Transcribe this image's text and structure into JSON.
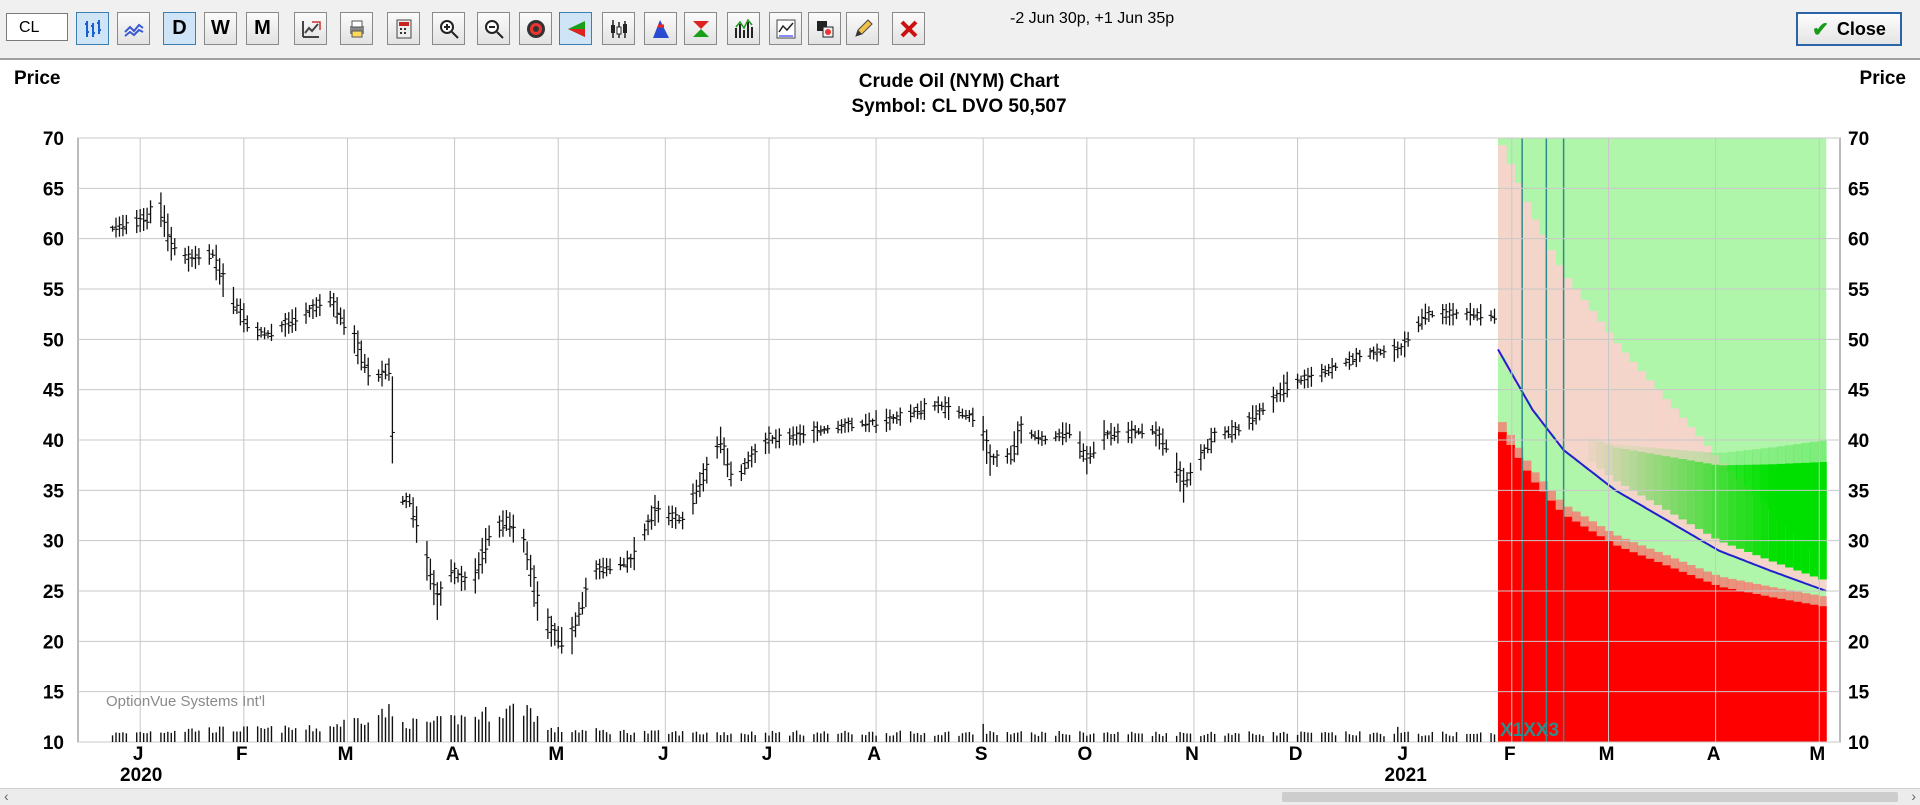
{
  "toolbar": {
    "symbol": "CL",
    "buttons": [
      {
        "name": "bar-chart-button",
        "label": "",
        "icon": "bar-chart-icon",
        "on": true
      },
      {
        "name": "line-chart-button",
        "label": "",
        "icon": "line-chart-icon",
        "on": false
      },
      {
        "name": "daily-button",
        "label": "D",
        "icon": "",
        "on": true
      },
      {
        "name": "weekly-button",
        "label": "W",
        "icon": "",
        "on": false
      },
      {
        "name": "monthly-button",
        "label": "M",
        "icon": "",
        "on": false
      },
      {
        "name": "chart-settings-button",
        "label": "",
        "icon": "chart-settings-icon",
        "on": false
      },
      {
        "name": "print-button",
        "label": "",
        "icon": "print-icon",
        "on": false
      },
      {
        "name": "calculator-button",
        "label": "",
        "icon": "calculator-icon",
        "on": false
      },
      {
        "name": "zoom-in-button",
        "label": "",
        "icon": "zoom-in-icon",
        "on": false
      },
      {
        "name": "zoom-out-button",
        "label": "",
        "icon": "zoom-out-icon",
        "on": false
      },
      {
        "name": "target-button",
        "label": "",
        "icon": "target-icon",
        "on": false
      },
      {
        "name": "probability-cone-button",
        "label": "",
        "icon": "probability-cone-icon",
        "on": true
      },
      {
        "name": "candles-button",
        "label": "",
        "icon": "candles-icon",
        "on": false
      },
      {
        "name": "expected-range-button",
        "label": "",
        "icon": "expected-range-icon",
        "on": false
      },
      {
        "name": "hourglass-button",
        "label": "",
        "icon": "hourglass-icon",
        "on": false
      },
      {
        "name": "volume-study-button",
        "label": "",
        "icon": "volume-study-icon",
        "on": false
      },
      {
        "name": "indicator-button",
        "label": "",
        "icon": "indicator-icon",
        "on": false
      },
      {
        "name": "palette-button",
        "label": "",
        "icon": "palette-icon",
        "on": false
      },
      {
        "name": "draw-line-button",
        "label": "",
        "icon": "pencil-icon",
        "on": false
      },
      {
        "name": "delete-button",
        "label": "",
        "icon": "delete-icon",
        "on": false
      }
    ],
    "status": "-2 Jun 30p, +1 Jun 35p",
    "close_label": "Close"
  },
  "chart_data": {
    "type": "bar",
    "title": "Crude Oil (NYM) Chart",
    "subtitle": "Symbol: CL  DVO 50,507",
    "ylabel_left": "Price",
    "ylabel_right": "Price",
    "ylim": [
      10,
      70
    ],
    "yticks": [
      10,
      15,
      20,
      25,
      30,
      35,
      40,
      45,
      50,
      55,
      60,
      65,
      70
    ],
    "watermark": "OptionVue Systems Int'l",
    "month_labels": [
      {
        "label": "J",
        "day": 8
      },
      {
        "label": "F",
        "day": 38
      },
      {
        "label": "M",
        "day": 68
      },
      {
        "label": "A",
        "day": 99
      },
      {
        "label": "M",
        "day": 129
      },
      {
        "label": "J",
        "day": 160
      },
      {
        "label": "J",
        "day": 190
      },
      {
        "label": "A",
        "day": 221
      },
      {
        "label": "S",
        "day": 252
      },
      {
        "label": "O",
        "day": 282
      },
      {
        "label": "N",
        "day": 313
      },
      {
        "label": "D",
        "day": 343
      },
      {
        "label": "J",
        "day": 374
      },
      {
        "label": "F",
        "day": 405
      },
      {
        "label": "M",
        "day": 433
      },
      {
        "label": "A",
        "day": 464
      },
      {
        "label": "M",
        "day": 494
      }
    ],
    "year_labels": [
      {
        "label": "2020",
        "day": 8
      },
      {
        "label": "2021",
        "day": 374
      }
    ],
    "price_keyframes": [
      [
        0,
        61
      ],
      [
        10,
        62
      ],
      [
        13,
        64
      ],
      [
        17,
        59.5
      ],
      [
        22,
        58
      ],
      [
        29,
        58.5
      ],
      [
        33,
        55
      ],
      [
        40,
        51
      ],
      [
        45,
        50.5
      ],
      [
        53,
        52
      ],
      [
        63,
        54
      ],
      [
        70,
        50
      ],
      [
        75,
        46
      ],
      [
        80,
        47
      ],
      [
        81,
        42
      ],
      [
        83,
        34
      ],
      [
        86,
        34
      ],
      [
        91,
        28
      ],
      [
        94,
        24
      ],
      [
        98,
        27
      ],
      [
        104,
        25.5
      ],
      [
        109,
        30.5
      ],
      [
        114,
        32
      ],
      [
        119,
        30
      ],
      [
        123,
        24
      ],
      [
        127,
        21
      ],
      [
        132,
        19.5
      ],
      [
        139,
        27
      ],
      [
        150,
        28
      ],
      [
        157,
        33
      ],
      [
        165,
        32
      ],
      [
        172,
        37
      ],
      [
        176,
        40
      ],
      [
        180,
        35.5
      ],
      [
        184,
        38
      ],
      [
        190,
        40
      ],
      [
        199,
        40.5
      ],
      [
        213,
        41.5
      ],
      [
        225,
        42
      ],
      [
        239,
        43.5
      ],
      [
        251,
        42
      ],
      [
        254,
        38
      ],
      [
        260,
        38.5
      ],
      [
        263,
        41
      ],
      [
        270,
        40
      ],
      [
        278,
        41
      ],
      [
        282,
        38
      ],
      [
        287,
        40.5
      ],
      [
        301,
        41
      ],
      [
        306,
        39
      ],
      [
        310,
        35.5
      ],
      [
        319,
        40.5
      ],
      [
        326,
        41
      ],
      [
        336,
        44
      ],
      [
        340,
        45.5
      ],
      [
        349,
        46.5
      ],
      [
        362,
        48.5
      ],
      [
        373,
        49
      ],
      [
        380,
        52.5
      ],
      [
        387,
        52.5
      ],
      [
        394,
        52.5
      ],
      [
        400,
        52.3
      ]
    ],
    "volume_keyframes": [
      [
        0,
        0.8
      ],
      [
        20,
        1.2
      ],
      [
        60,
        1.3
      ],
      [
        80,
        3.0
      ],
      [
        82,
        1.8
      ],
      [
        95,
        2.0
      ],
      [
        120,
        3.5
      ],
      [
        126,
        1.2
      ],
      [
        160,
        0.9
      ],
      [
        400,
        0.8
      ]
    ],
    "volume_spikes": [
      [
        82,
        3.6
      ],
      [
        125,
        3.5
      ],
      [
        252,
        1.8
      ],
      [
        372,
        1.5
      ]
    ],
    "forecast": {
      "start_day": 401,
      "end_day": 496,
      "expected_keyframes": [
        [
          401,
          49
        ],
        [
          406,
          46
        ],
        [
          411,
          43
        ],
        [
          420,
          39
        ],
        [
          435,
          35
        ],
        [
          450,
          32
        ],
        [
          465,
          29
        ],
        [
          480,
          27
        ],
        [
          496,
          25
        ]
      ],
      "expiration_days": [
        408,
        415,
        420
      ],
      "expiration_label": "X1XX3",
      "colors": {
        "bull": "#00e000",
        "bear": "#ff0000",
        "bull_light": "#aff5aa",
        "bear_light": "#ffcfcf",
        "expected": "#2020cc",
        "expiration": "#2e8b8b"
      }
    }
  }
}
